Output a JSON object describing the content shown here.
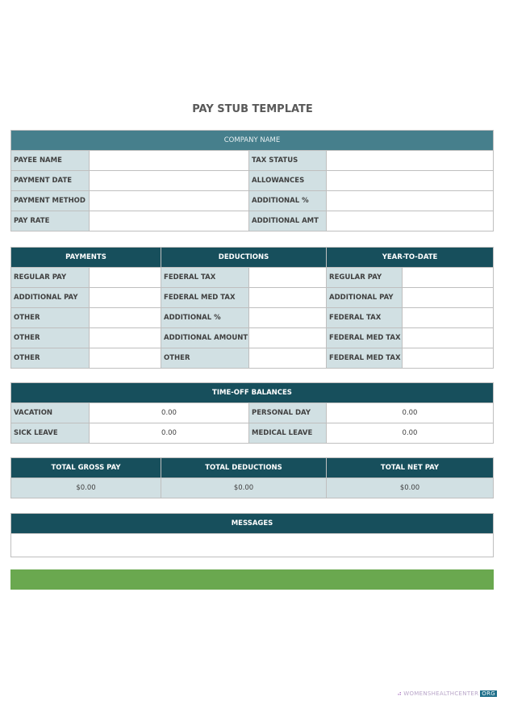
{
  "title": "PAY STUB TEMPLATE",
  "company": {
    "header": "COMPANY NAME",
    "left_labels": [
      "PAYEE NAME",
      "PAYMENT DATE",
      "PAYMENT METHOD",
      "PAY RATE"
    ],
    "right_labels": [
      "TAX STATUS",
      "ALLOWANCES",
      "ADDITIONAL %",
      "ADDITIONAL AMT"
    ]
  },
  "breakdown": {
    "headers": [
      "PAYMENTS",
      "DEDUCTIONS",
      "YEAR-TO-DATE"
    ],
    "payments": [
      "REGULAR PAY",
      "ADDITIONAL PAY",
      "OTHER",
      "OTHER",
      "OTHER"
    ],
    "deductions": [
      "FEDERAL TAX",
      "FEDERAL MED TAX",
      "ADDITIONAL %",
      "ADDITIONAL AMOUNT",
      "OTHER"
    ],
    "ytd": [
      "REGULAR PAY",
      "ADDITIONAL PAY",
      "FEDERAL TAX",
      "FEDERAL MED TAX",
      "FEDERAL MED TAX"
    ]
  },
  "timeoff": {
    "header": "TIME-OFF BALANCES",
    "rows": [
      {
        "l1": "VACATION",
        "v1": "0.00",
        "l2": "PERSONAL DAY",
        "v2": "0.00"
      },
      {
        "l1": "SICK LEAVE",
        "v1": "0.00",
        "l2": "MEDICAL LEAVE",
        "v2": "0.00"
      }
    ]
  },
  "totals": {
    "headers": [
      "TOTAL GROSS PAY",
      "TOTAL DEDUCTIONS",
      "TOTAL NET PAY"
    ],
    "values": [
      "$0.00",
      "$0.00",
      "$0.00"
    ]
  },
  "messages": {
    "header": "MESSAGES",
    "body": ""
  },
  "logo": {
    "name": "WOMENSHEALTHCENTER",
    "tld": "ORG"
  },
  "colors": {
    "header_dark": "#174f5c",
    "company_header": "#467f8c",
    "label_bg": "#d1e0e3",
    "footer_bar": "#6aa84f"
  }
}
